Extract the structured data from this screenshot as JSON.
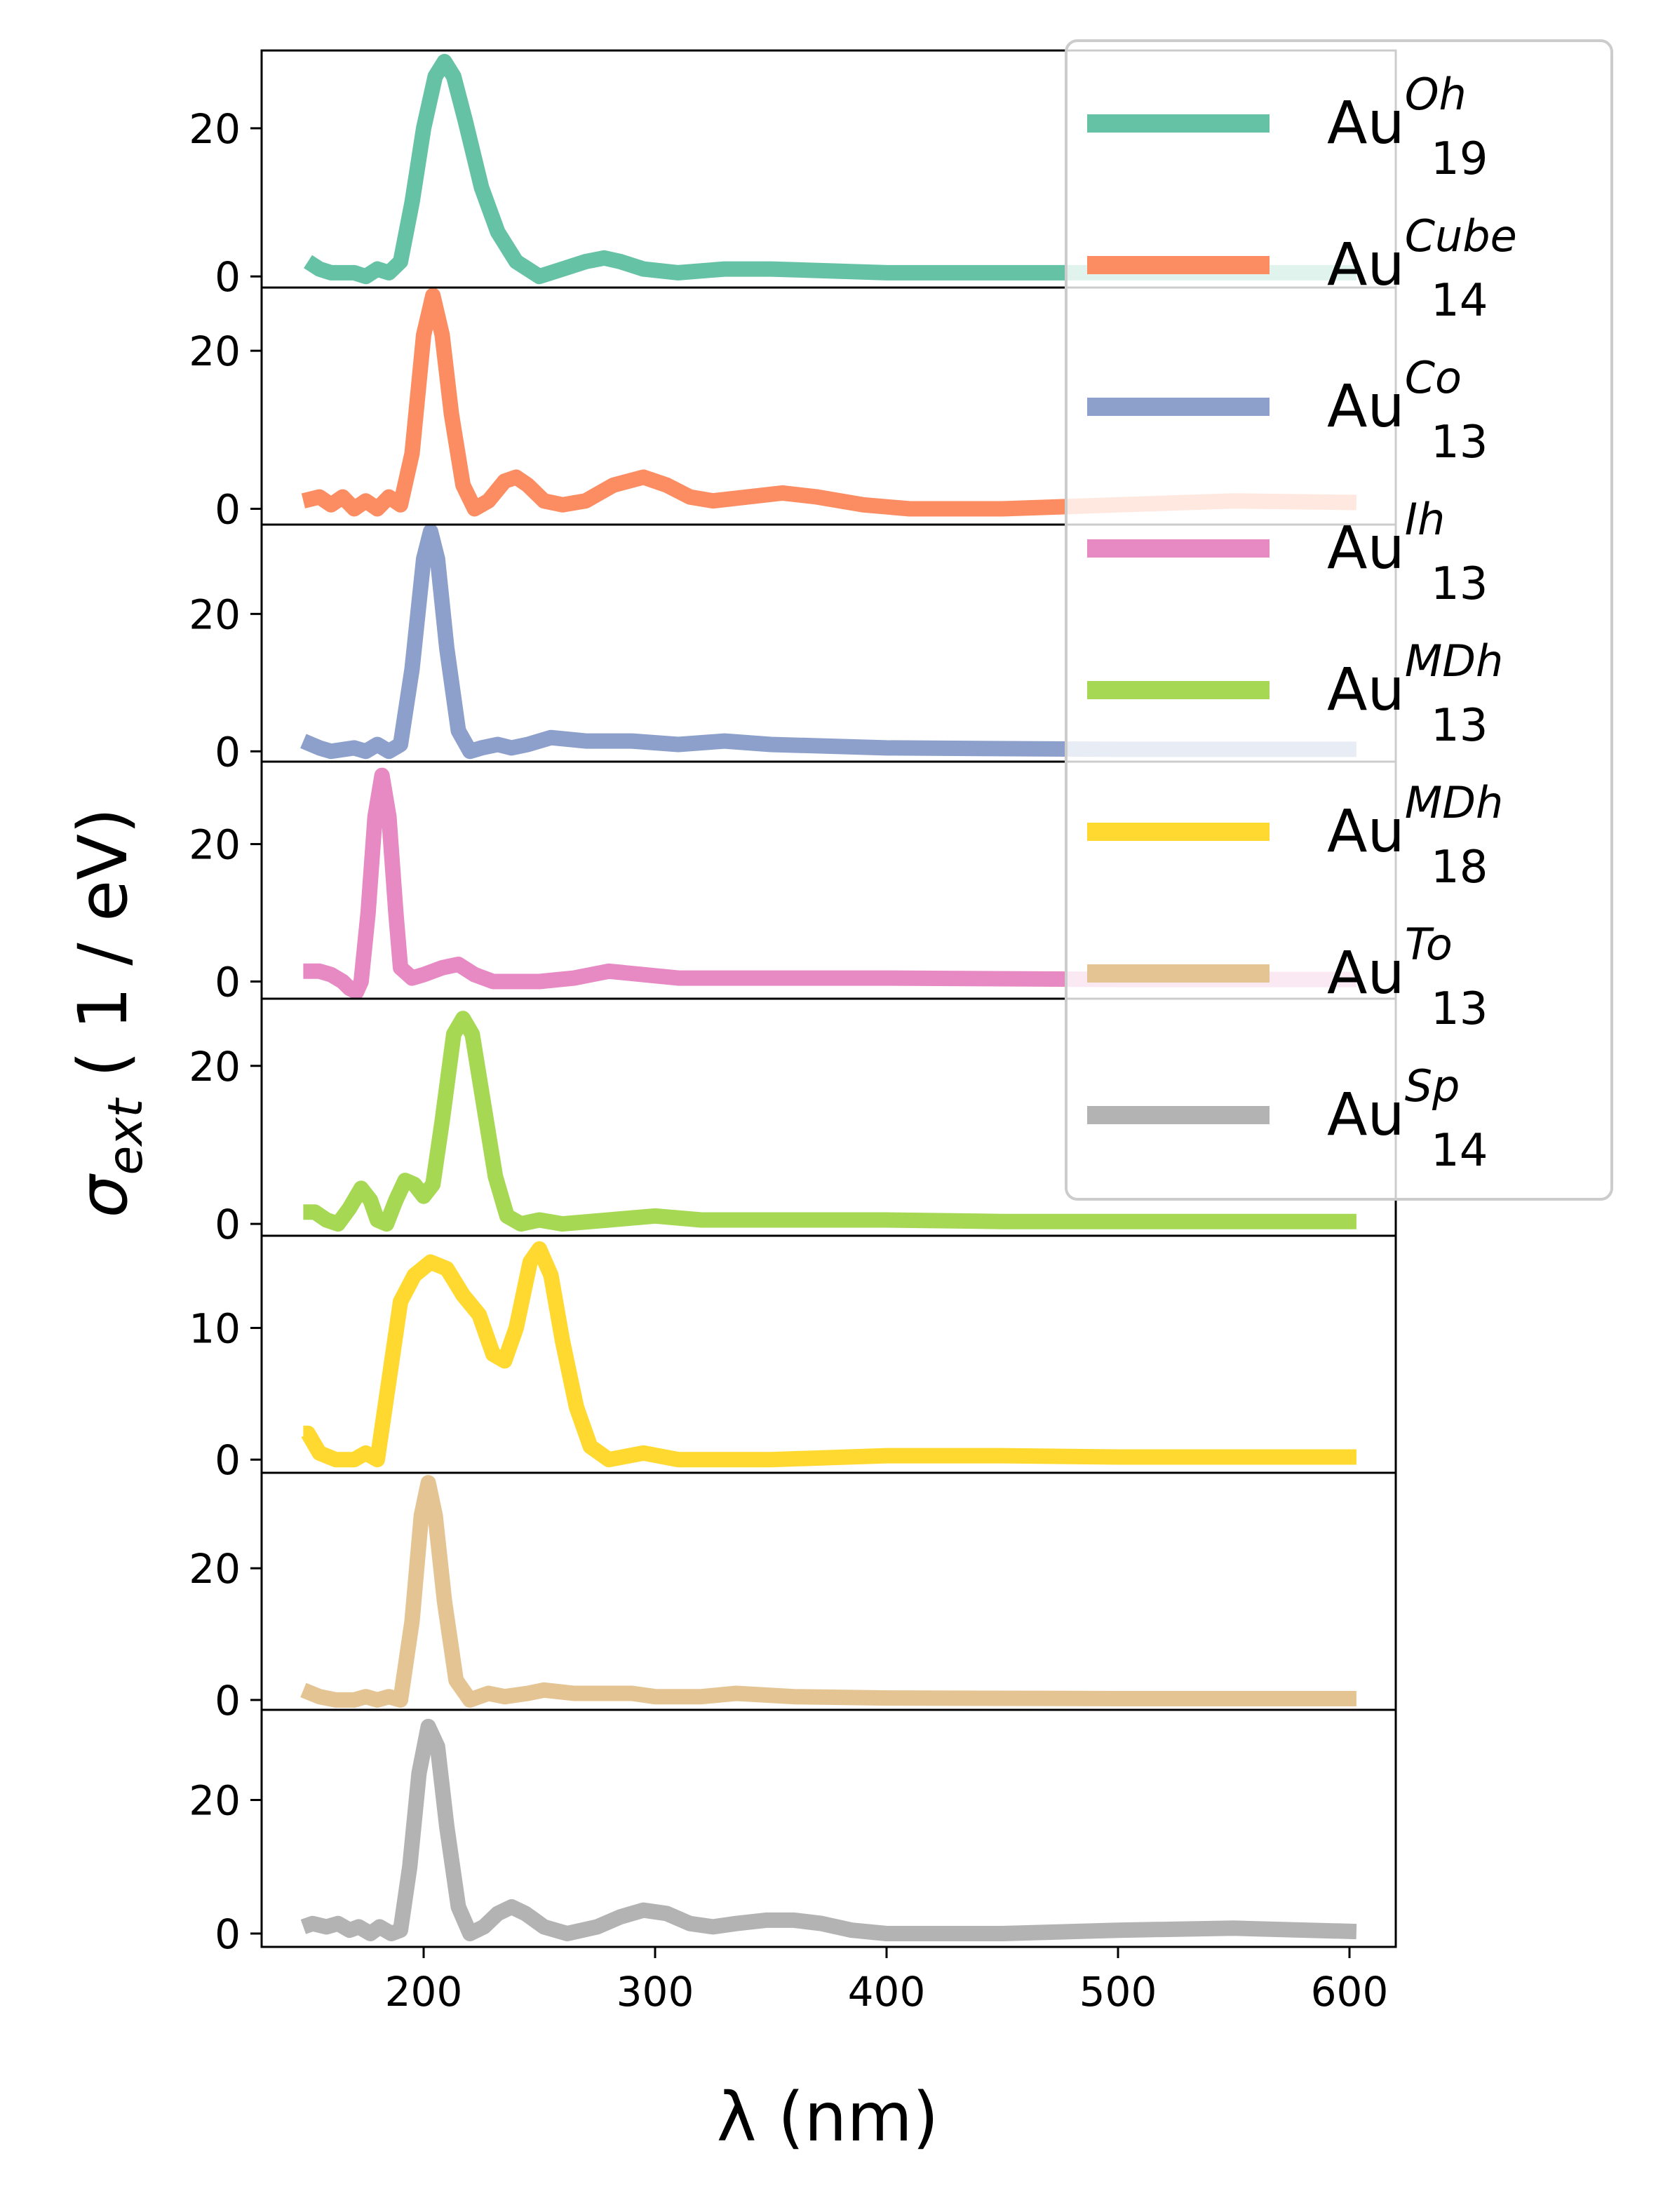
{
  "chart_data": {
    "type": "line",
    "xlabel": "λ (nm)",
    "ylabel": {
      "symbol": "σ",
      "subscript": "ext",
      "unit": " ( 1 / eV)"
    },
    "xlim": [
      130,
      620
    ],
    "xticks": [
      200,
      300,
      400,
      500,
      600
    ],
    "legend_position": "top-right",
    "panels": [
      {
        "series": {
          "base": "Au",
          "sub": "19",
          "sup": "Oh",
          "color": "#66c2a5"
        },
        "ylim": [
          -1.5,
          30.5
        ],
        "yticks": [
          0,
          20
        ],
        "points": [
          [
            150,
            2
          ],
          [
            155,
            1
          ],
          [
            160,
            0.5
          ],
          [
            170,
            0.5
          ],
          [
            175,
            0
          ],
          [
            180,
            1
          ],
          [
            185,
            0.5
          ],
          [
            190,
            2
          ],
          [
            195,
            10
          ],
          [
            200,
            20
          ],
          [
            205,
            27
          ],
          [
            209,
            29
          ],
          [
            213,
            27
          ],
          [
            218,
            21
          ],
          [
            225,
            12
          ],
          [
            232,
            6
          ],
          [
            240,
            2
          ],
          [
            250,
            0
          ],
          [
            260,
            1
          ],
          [
            270,
            2
          ],
          [
            278,
            2.5
          ],
          [
            285,
            2
          ],
          [
            295,
            1
          ],
          [
            310,
            0.5
          ],
          [
            330,
            1
          ],
          [
            350,
            1
          ],
          [
            400,
            0.5
          ],
          [
            500,
            0.5
          ],
          [
            603,
            0.5
          ]
        ]
      },
      {
        "series": {
          "base": "Au",
          "sub": "14",
          "sup": "Cube",
          "color": "#fc8d62"
        },
        "ylim": [
          -2,
          28
        ],
        "yticks": [
          0,
          20
        ],
        "points": [
          [
            148,
            1
          ],
          [
            155,
            1.5
          ],
          [
            160,
            0.5
          ],
          [
            165,
            1.5
          ],
          [
            170,
            0
          ],
          [
            175,
            1
          ],
          [
            180,
            0
          ],
          [
            185,
            1.5
          ],
          [
            190,
            0.5
          ],
          [
            195,
            7
          ],
          [
            200,
            22
          ],
          [
            204,
            27
          ],
          [
            208,
            22
          ],
          [
            212,
            12
          ],
          [
            217,
            3
          ],
          [
            222,
            0
          ],
          [
            228,
            1
          ],
          [
            235,
            3.5
          ],
          [
            240,
            4
          ],
          [
            245,
            3
          ],
          [
            252,
            1
          ],
          [
            260,
            0.5
          ],
          [
            270,
            1
          ],
          [
            282,
            3
          ],
          [
            295,
            4
          ],
          [
            305,
            3
          ],
          [
            315,
            1.5
          ],
          [
            325,
            1
          ],
          [
            340,
            1.5
          ],
          [
            355,
            2
          ],
          [
            370,
            1.5
          ],
          [
            390,
            0.5
          ],
          [
            410,
            0
          ],
          [
            450,
            0
          ],
          [
            500,
            0.5
          ],
          [
            550,
            1
          ],
          [
            603,
            0.8
          ]
        ]
      },
      {
        "series": {
          "base": "Au",
          "sub": "13",
          "sup": "Co",
          "color": "#8da0cb"
        },
        "ylim": [
          -1.5,
          33
        ],
        "yticks": [
          0,
          20
        ],
        "points": [
          [
            148,
            1.5
          ],
          [
            155,
            0.5
          ],
          [
            160,
            0
          ],
          [
            170,
            0.5
          ],
          [
            175,
            0
          ],
          [
            180,
            1
          ],
          [
            185,
            0
          ],
          [
            190,
            1
          ],
          [
            195,
            12
          ],
          [
            200,
            28
          ],
          [
            203,
            32
          ],
          [
            206,
            28
          ],
          [
            210,
            15
          ],
          [
            215,
            3
          ],
          [
            220,
            0
          ],
          [
            225,
            0.5
          ],
          [
            232,
            1
          ],
          [
            238,
            0.5
          ],
          [
            245,
            1
          ],
          [
            255,
            2
          ],
          [
            270,
            1.5
          ],
          [
            290,
            1.5
          ],
          [
            310,
            1
          ],
          [
            330,
            1.5
          ],
          [
            350,
            1
          ],
          [
            400,
            0.5
          ],
          [
            500,
            0.3
          ],
          [
            603,
            0.3
          ]
        ]
      },
      {
        "series": {
          "base": "Au",
          "sub": "13",
          "sup": "Ih",
          "color": "#e78ac3"
        },
        "ylim": [
          -2.5,
          32
        ],
        "yticks": [
          0,
          20
        ],
        "points": [
          [
            148,
            1.5
          ],
          [
            155,
            1.5
          ],
          [
            160,
            1
          ],
          [
            165,
            0
          ],
          [
            168,
            -1
          ],
          [
            171,
            -1.5
          ],
          [
            173,
            0
          ],
          [
            176,
            10
          ],
          [
            179,
            24
          ],
          [
            182,
            30
          ],
          [
            185,
            24
          ],
          [
            188,
            10
          ],
          [
            190,
            2
          ],
          [
            195,
            0.5
          ],
          [
            200,
            1
          ],
          [
            208,
            2
          ],
          [
            215,
            2.5
          ],
          [
            222,
            1
          ],
          [
            230,
            0
          ],
          [
            250,
            0
          ],
          [
            265,
            0.5
          ],
          [
            280,
            1.5
          ],
          [
            295,
            1
          ],
          [
            310,
            0.5
          ],
          [
            330,
            0.5
          ],
          [
            400,
            0.5
          ],
          [
            500,
            0.3
          ],
          [
            603,
            0.3
          ]
        ]
      },
      {
        "series": {
          "base": "Au",
          "sub": "13",
          "sup": "MDh",
          "color": "#a6d854"
        },
        "ylim": [
          -1.5,
          28.5
        ],
        "yticks": [
          0,
          20
        ],
        "points": [
          [
            148,
            1.5
          ],
          [
            153,
            1.5
          ],
          [
            158,
            0.5
          ],
          [
            163,
            0
          ],
          [
            168,
            2
          ],
          [
            173,
            4.5
          ],
          [
            177,
            3
          ],
          [
            180,
            0.5
          ],
          [
            184,
            0
          ],
          [
            188,
            3
          ],
          [
            192,
            5.5
          ],
          [
            196,
            5
          ],
          [
            200,
            3.5
          ],
          [
            204,
            5
          ],
          [
            208,
            13
          ],
          [
            213,
            24
          ],
          [
            217,
            26
          ],
          [
            221,
            24
          ],
          [
            226,
            15
          ],
          [
            231,
            6
          ],
          [
            236,
            1
          ],
          [
            242,
            0
          ],
          [
            250,
            0.5
          ],
          [
            260,
            0
          ],
          [
            280,
            0.5
          ],
          [
            300,
            1
          ],
          [
            320,
            0.5
          ],
          [
            350,
            0.5
          ],
          [
            380,
            0.5
          ],
          [
            400,
            0.5
          ],
          [
            450,
            0.3
          ],
          [
            500,
            0.3
          ],
          [
            603,
            0.3
          ]
        ]
      },
      {
        "series": {
          "base": "Au",
          "sub": "18",
          "sup": "MDh",
          "color": "#ffd92f"
        },
        "ylim": [
          -1,
          17
        ],
        "yticks": [
          0,
          10
        ],
        "points": [
          [
            148,
            2
          ],
          [
            150,
            2
          ],
          [
            155,
            0.5
          ],
          [
            162,
            0
          ],
          [
            170,
            0
          ],
          [
            175,
            0.5
          ],
          [
            180,
            0
          ],
          [
            185,
            6
          ],
          [
            190,
            12
          ],
          [
            196,
            14
          ],
          [
            203,
            15
          ],
          [
            210,
            14.5
          ],
          [
            217,
            12.5
          ],
          [
            224,
            11
          ],
          [
            230,
            8
          ],
          [
            235,
            7.5
          ],
          [
            240,
            10
          ],
          [
            246,
            15
          ],
          [
            250,
            16
          ],
          [
            255,
            14
          ],
          [
            260,
            9
          ],
          [
            266,
            4
          ],
          [
            272,
            1
          ],
          [
            280,
            0
          ],
          [
            295,
            0.5
          ],
          [
            310,
            0
          ],
          [
            350,
            0
          ],
          [
            400,
            0.3
          ],
          [
            450,
            0.3
          ],
          [
            500,
            0.2
          ],
          [
            603,
            0.2
          ]
        ]
      },
      {
        "series": {
          "base": "Au",
          "sub": "13",
          "sup": "To",
          "color": "#e5c494"
        },
        "ylim": [
          -1.5,
          34.5
        ],
        "yticks": [
          0,
          20
        ],
        "points": [
          [
            148,
            1.5
          ],
          [
            155,
            0.5
          ],
          [
            162,
            0
          ],
          [
            170,
            0
          ],
          [
            175,
            0.5
          ],
          [
            180,
            0
          ],
          [
            185,
            0.5
          ],
          [
            190,
            0
          ],
          [
            195,
            12
          ],
          [
            199,
            28
          ],
          [
            202,
            33
          ],
          [
            205,
            28
          ],
          [
            209,
            15
          ],
          [
            214,
            3
          ],
          [
            220,
            0
          ],
          [
            228,
            1
          ],
          [
            235,
            0.5
          ],
          [
            245,
            1
          ],
          [
            252,
            1.5
          ],
          [
            265,
            1
          ],
          [
            290,
            1
          ],
          [
            300,
            0.5
          ],
          [
            320,
            0.5
          ],
          [
            335,
            1
          ],
          [
            360,
            0.5
          ],
          [
            400,
            0.3
          ],
          [
            500,
            0.2
          ],
          [
            603,
            0.2
          ]
        ]
      },
      {
        "series": {
          "base": "Au",
          "sub": "14",
          "sup": "Sp",
          "color": "#b3b3b3"
        },
        "ylim": [
          -2,
          33.5
        ],
        "yticks": [
          0,
          20
        ],
        "points": [
          [
            148,
            1
          ],
          [
            152,
            1.5
          ],
          [
            158,
            1
          ],
          [
            163,
            1.5
          ],
          [
            168,
            0.5
          ],
          [
            172,
            1
          ],
          [
            177,
            0
          ],
          [
            181,
            1
          ],
          [
            186,
            0
          ],
          [
            190,
            0.5
          ],
          [
            194,
            10
          ],
          [
            198,
            24
          ],
          [
            202,
            31
          ],
          [
            206,
            28
          ],
          [
            210,
            16
          ],
          [
            215,
            4
          ],
          [
            220,
            0
          ],
          [
            226,
            1
          ],
          [
            232,
            3
          ],
          [
            238,
            4
          ],
          [
            244,
            3
          ],
          [
            252,
            1
          ],
          [
            262,
            0
          ],
          [
            275,
            1
          ],
          [
            285,
            2.5
          ],
          [
            295,
            3.5
          ],
          [
            305,
            3
          ],
          [
            315,
            1.5
          ],
          [
            325,
            1
          ],
          [
            335,
            1.5
          ],
          [
            348,
            2
          ],
          [
            360,
            2
          ],
          [
            372,
            1.5
          ],
          [
            385,
            0.5
          ],
          [
            400,
            0
          ],
          [
            450,
            0
          ],
          [
            500,
            0.5
          ],
          [
            550,
            0.8
          ],
          [
            603,
            0.3
          ]
        ]
      }
    ]
  }
}
